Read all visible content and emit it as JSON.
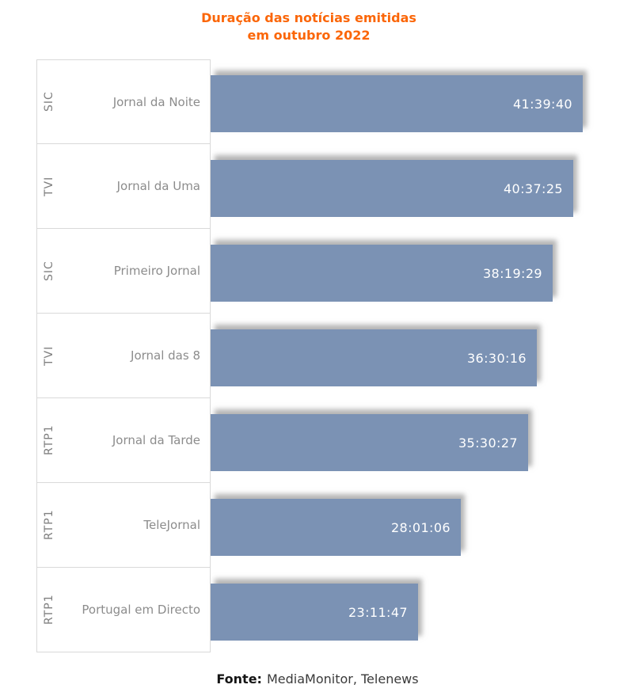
{
  "title": {
    "line1": "Duração das notícias emitidas",
    "line2": "em outubro 2022",
    "color": "#FB6608"
  },
  "chart_data": {
    "type": "bar",
    "orientation": "horizontal",
    "title": "Duração das notícias emitidas em outubro 2022",
    "categories": [
      "Jornal da Noite",
      "Jornal da Uma",
      "Primeiro Jornal",
      "Jornal das 8",
      "Jornal da Tarde",
      "TeleJornal",
      "Portugal em Directo"
    ],
    "channels": [
      "SIC",
      "TVI",
      "SIC",
      "TVI",
      "RTP1",
      "RTP1",
      "RTP1"
    ],
    "values": [
      "41:39:40",
      "40:37:25",
      "38:19:29",
      "36:30:16",
      "35:30:27",
      "28:01:06",
      "23:11:47"
    ],
    "values_hours": [
      41.661,
      40.624,
      38.325,
      36.504,
      35.508,
      28.018,
      23.196
    ],
    "xlim": [
      0,
      41.661
    ],
    "grid": false,
    "legend": "none",
    "bar_color": "#7B92B4",
    "value_label_color": "#FFFFFF",
    "rows": [
      {
        "channel": "SIC",
        "program": "Jornal da Noite",
        "value": "41:39:40",
        "hours": 41.661
      },
      {
        "channel": "TVI",
        "program": "Jornal da Uma",
        "value": "40:37:25",
        "hours": 40.624
      },
      {
        "channel": "SIC",
        "program": "Primeiro Jornal",
        "value": "38:19:29",
        "hours": 38.325
      },
      {
        "channel": "TVI",
        "program": "Jornal das 8",
        "value": "36:30:16",
        "hours": 36.504
      },
      {
        "channel": "RTP1",
        "program": "Jornal da Tarde",
        "value": "35:30:27",
        "hours": 35.508
      },
      {
        "channel": "RTP1",
        "program": "TeleJornal",
        "value": "28:01:06",
        "hours": 28.018
      },
      {
        "channel": "RTP1",
        "program": "Portugal em Directo",
        "value": "23:11:47",
        "hours": 23.196
      }
    ]
  },
  "footer": {
    "label": "Fonte:",
    "text": "MediaMonitor, Telenews"
  }
}
